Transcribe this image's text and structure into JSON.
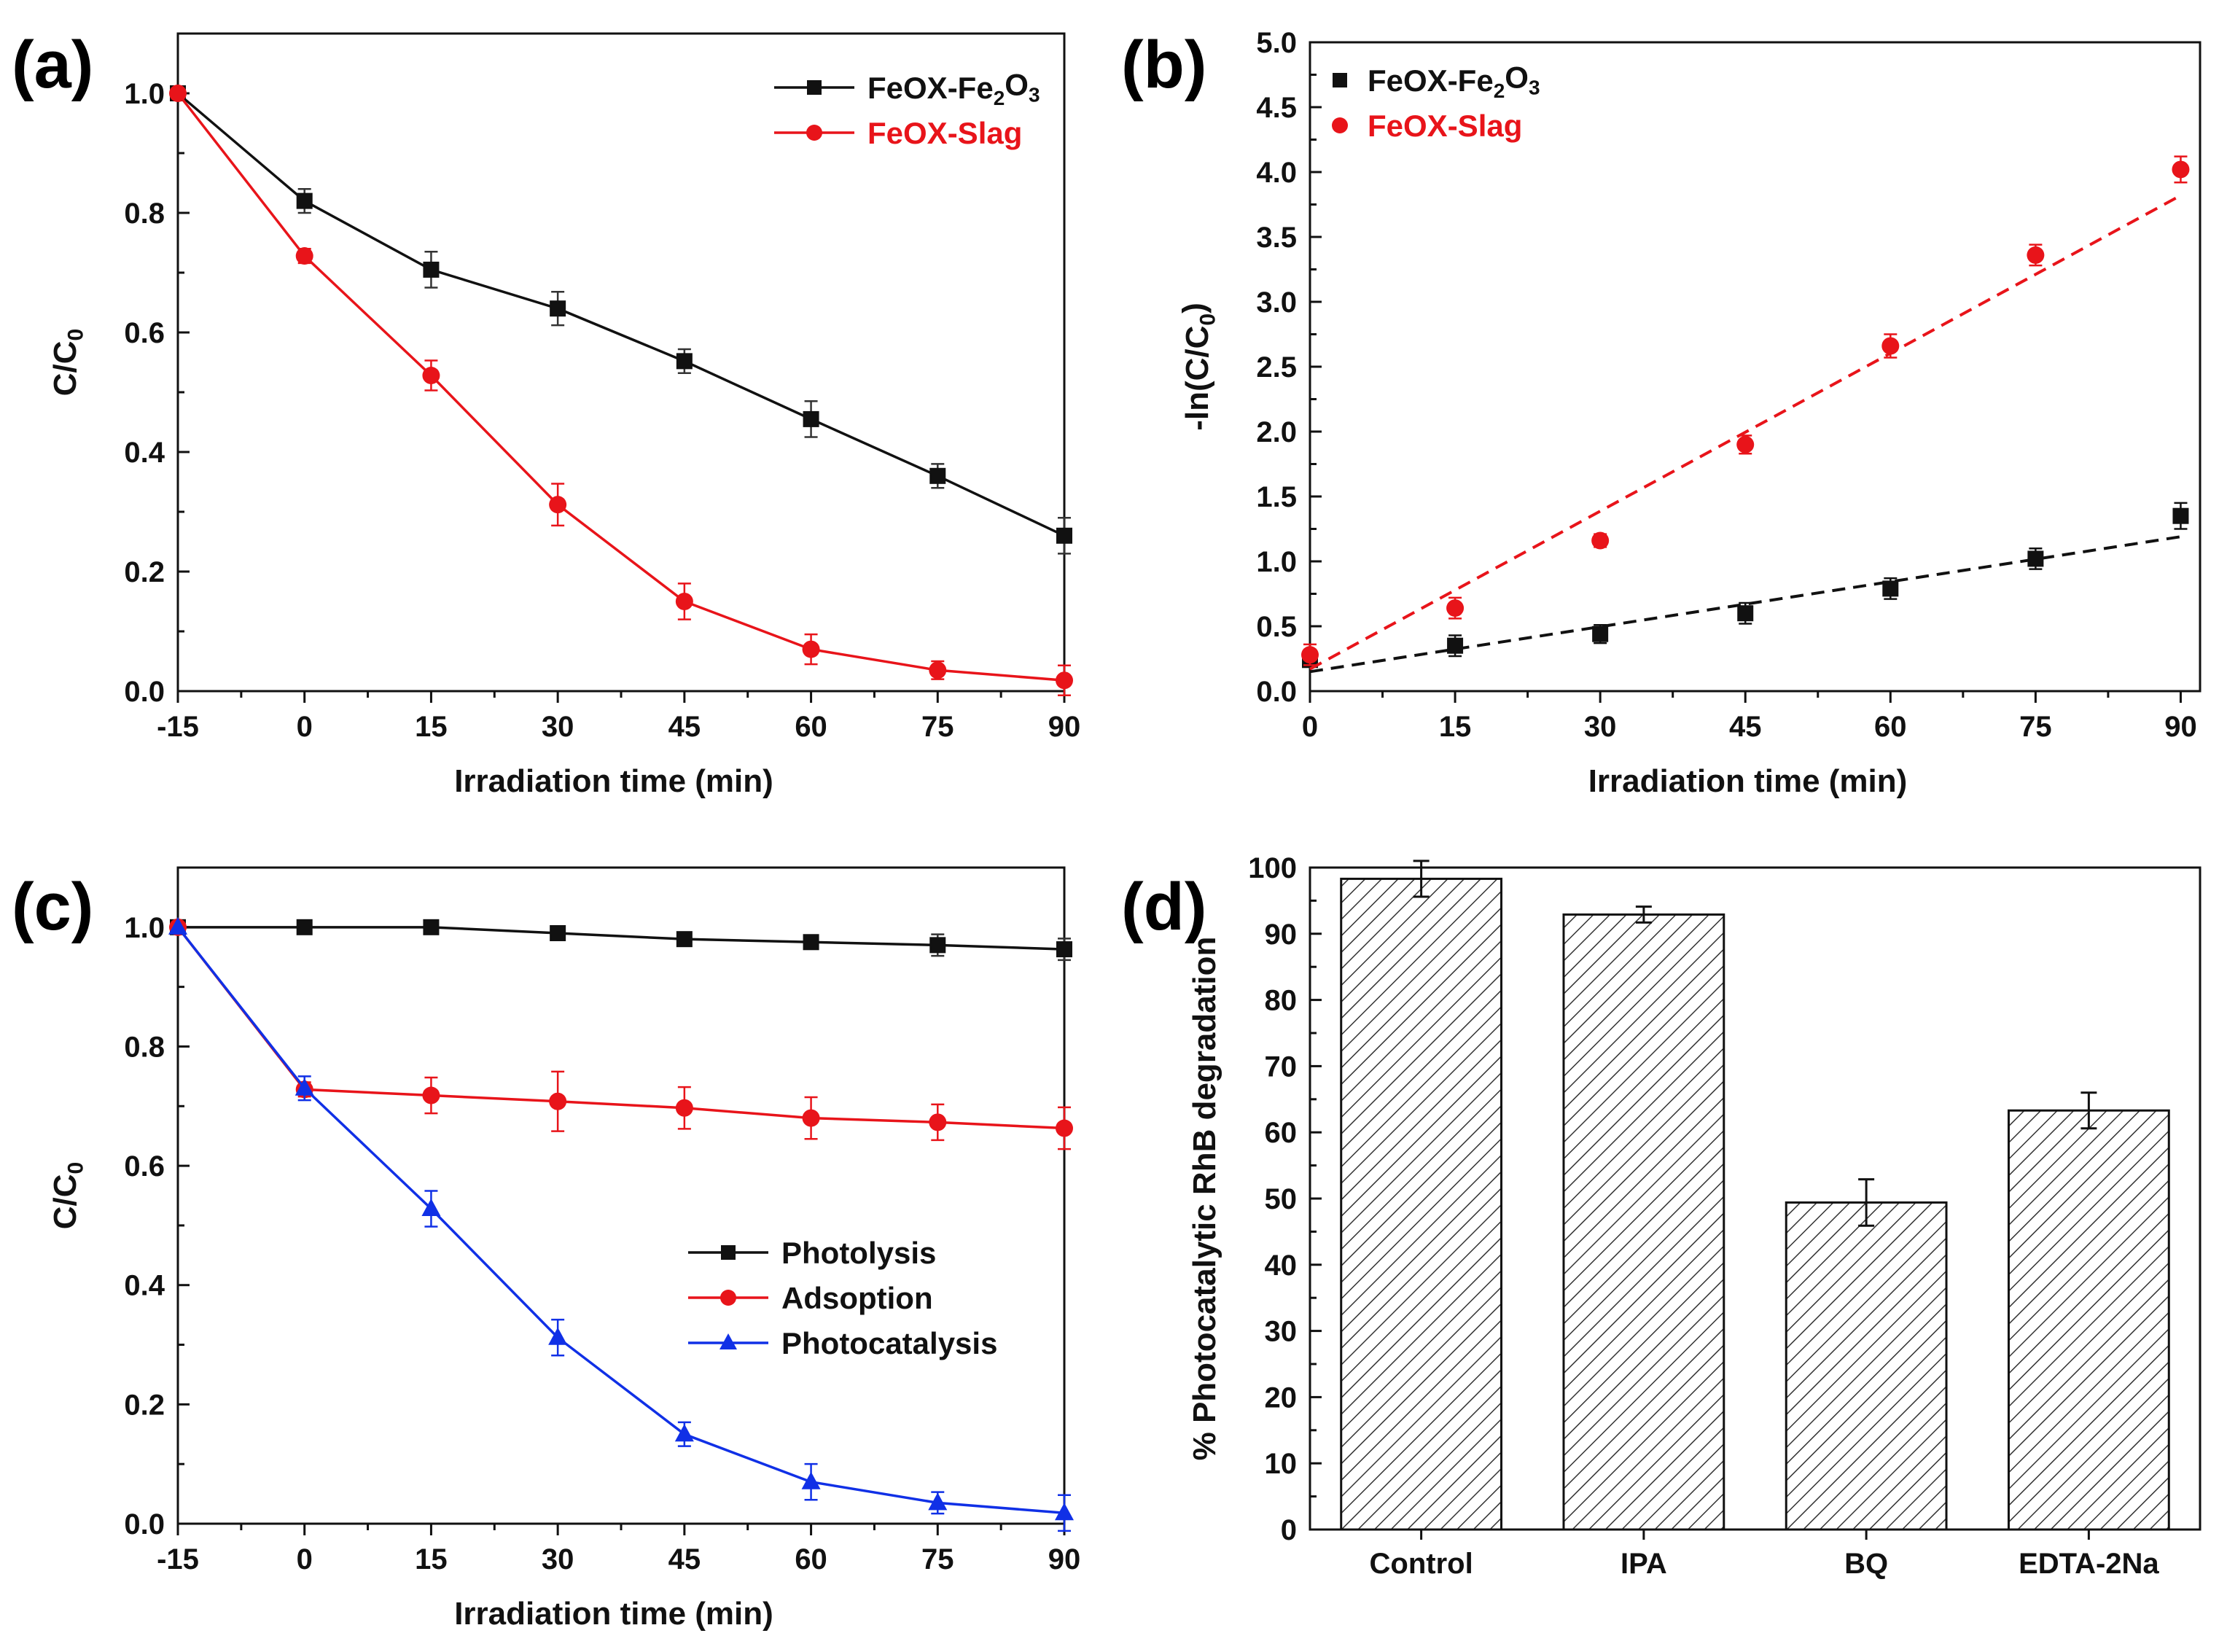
{
  "panels": [
    {
      "tag": "(a)",
      "type": "line",
      "xlabel": "Irradiation time (min)",
      "ylabel": "C/C0",
      "xlim": [
        -15,
        90
      ],
      "ylim": [
        0,
        1.1
      ],
      "xticks": [
        "-15",
        "0",
        "15",
        "30",
        "45",
        "60",
        "75",
        "90"
      ],
      "yticks": [
        "0.0",
        "0.2",
        "0.4",
        "0.6",
        "0.8",
        "1.0"
      ],
      "legend": [
        "FeOX-Fe2O3",
        "FeOX-Slag"
      ],
      "series": [
        {
          "name": "FeOX-Fe2O3",
          "color": "#111111",
          "marker": "square",
          "x": [
            -15,
            0,
            15,
            30,
            45,
            60,
            75,
            90
          ],
          "y": [
            1.0,
            0.82,
            0.705,
            0.64,
            0.552,
            0.455,
            0.36,
            0.26
          ],
          "err": [
            0.0,
            0.02,
            0.03,
            0.028,
            0.02,
            0.03,
            0.02,
            0.03
          ]
        },
        {
          "name": "FeOX-Slag",
          "color": "#e8141a",
          "marker": "circle",
          "x": [
            -15,
            0,
            15,
            30,
            45,
            60,
            75,
            90
          ],
          "y": [
            1.0,
            0.728,
            0.528,
            0.312,
            0.15,
            0.07,
            0.035,
            0.018
          ],
          "err": [
            0.0,
            0.012,
            0.025,
            0.035,
            0.03,
            0.025,
            0.015,
            0.025
          ]
        }
      ]
    },
    {
      "tag": "(b)",
      "type": "scatter",
      "xlabel": "Irradiation time (min)",
      "ylabel": "-ln(C/C0)",
      "xlim": [
        0,
        92
      ],
      "ylim": [
        0,
        5
      ],
      "xticks": [
        "0",
        "15",
        "30",
        "45",
        "60",
        "75",
        "90"
      ],
      "yticks": [
        "0.0",
        "0.5",
        "1.0",
        "1.5",
        "2.0",
        "2.5",
        "3.0",
        "3.5",
        "4.0",
        "4.5",
        "5.0"
      ],
      "legend": [
        "FeOX-Fe2O3",
        "FeOX-Slag"
      ],
      "series": [
        {
          "name": "FeOX-Fe2O3",
          "color": "#111111",
          "marker": "square",
          "x": [
            0,
            15,
            30,
            45,
            60,
            75,
            90
          ],
          "y": [
            0.24,
            0.35,
            0.44,
            0.6,
            0.79,
            1.02,
            1.35
          ],
          "err": [
            0.03,
            0.08,
            0.07,
            0.08,
            0.08,
            0.08,
            0.1
          ],
          "fit": [
            [
              0,
              0.15
            ],
            [
              90,
              1.19
            ]
          ]
        },
        {
          "name": "FeOX-Slag",
          "color": "#e8141a",
          "marker": "circle",
          "x": [
            0,
            15,
            30,
            45,
            60,
            75,
            90
          ],
          "y": [
            0.28,
            0.64,
            1.16,
            1.9,
            2.66,
            3.36,
            4.02
          ],
          "err": [
            0.08,
            0.08,
            0.05,
            0.07,
            0.09,
            0.08,
            0.1
          ],
          "fit": [
            [
              0,
              0.17
            ],
            [
              90,
              3.82
            ]
          ]
        }
      ]
    },
    {
      "tag": "(c)",
      "type": "line",
      "xlabel": "Irradiation time (min)",
      "ylabel": "C/C0",
      "xlim": [
        -15,
        90
      ],
      "ylim": [
        0,
        1.1
      ],
      "xticks": [
        "-15",
        "0",
        "15",
        "30",
        "45",
        "60",
        "75",
        "90"
      ],
      "yticks": [
        "0.0",
        "0.2",
        "0.4",
        "0.6",
        "0.8",
        "1.0"
      ],
      "legend": [
        "Photolysis",
        "Adsoption",
        "Photocatalysis"
      ],
      "series": [
        {
          "name": "Photolysis",
          "color": "#111111",
          "marker": "square",
          "x": [
            -15,
            0,
            15,
            30,
            45,
            60,
            75,
            90
          ],
          "y": [
            1.0,
            1.0,
            1.0,
            0.99,
            0.98,
            0.975,
            0.97,
            0.963
          ],
          "err": [
            0.0,
            0.005,
            0.008,
            0.008,
            0.01,
            0.01,
            0.018,
            0.018
          ]
        },
        {
          "name": "Adsoption",
          "color": "#e8141a",
          "marker": "circle",
          "x": [
            -15,
            0,
            15,
            30,
            45,
            60,
            75,
            90
          ],
          "y": [
            1.0,
            0.728,
            0.718,
            0.708,
            0.697,
            0.68,
            0.673,
            0.663
          ],
          "err": [
            0.0,
            0.012,
            0.03,
            0.05,
            0.035,
            0.035,
            0.03,
            0.035
          ]
        },
        {
          "name": "Photocatalysis",
          "color": "#1030e6",
          "marker": "triangle",
          "x": [
            -15,
            0,
            15,
            30,
            45,
            60,
            75,
            90
          ],
          "y": [
            1.0,
            0.73,
            0.528,
            0.312,
            0.15,
            0.07,
            0.035,
            0.018
          ],
          "err": [
            0.0,
            0.02,
            0.03,
            0.03,
            0.02,
            0.03,
            0.018,
            0.03
          ]
        }
      ]
    },
    {
      "tag": "(d)",
      "type": "bar",
      "xlabel": "",
      "ylabel": "% Photocatalytic RhB degradation",
      "ylim": [
        0,
        100
      ],
      "yticks": [
        "0",
        "10",
        "20",
        "30",
        "40",
        "50",
        "60",
        "70",
        "80",
        "90",
        "100"
      ],
      "categories": [
        "Control",
        "IPA",
        "BQ",
        "EDTA-2Na"
      ],
      "values": [
        98.3,
        92.9,
        49.4,
        63.3
      ],
      "err": [
        2.7,
        1.2,
        3.5,
        2.7
      ],
      "fill": "hatched"
    }
  ],
  "chart_data": [
    {
      "type": "line",
      "title": "(a)",
      "xlabel": "Irradiation time (min)",
      "ylabel": "C/C0",
      "x": [
        -15,
        0,
        15,
        30,
        45,
        60,
        75,
        90
      ],
      "series": [
        {
          "name": "FeOX-Fe2O3",
          "values": [
            1.0,
            0.82,
            0.705,
            0.64,
            0.552,
            0.455,
            0.36,
            0.26
          ]
        },
        {
          "name": "FeOX-Slag",
          "values": [
            1.0,
            0.728,
            0.528,
            0.312,
            0.15,
            0.07,
            0.035,
            0.018
          ]
        }
      ],
      "xlim": [
        -15,
        90
      ],
      "ylim": [
        0,
        1.1
      ],
      "legend": "top-right"
    },
    {
      "type": "scatter",
      "title": "(b)",
      "xlabel": "Irradiation time (min)",
      "ylabel": "-ln(C/C0)",
      "x": [
        0,
        15,
        30,
        45,
        60,
        75,
        90
      ],
      "series": [
        {
          "name": "FeOX-Fe2O3",
          "values": [
            0.24,
            0.35,
            0.44,
            0.6,
            0.79,
            1.02,
            1.35
          ]
        },
        {
          "name": "FeOX-Slag",
          "values": [
            0.28,
            0.64,
            1.16,
            1.9,
            2.66,
            3.36,
            4.02
          ]
        }
      ],
      "xlim": [
        0,
        92
      ],
      "ylim": [
        0,
        5
      ],
      "legend": "top-left"
    },
    {
      "type": "line",
      "title": "(c)",
      "xlabel": "Irradiation time (min)",
      "ylabel": "C/C0",
      "x": [
        -15,
        0,
        15,
        30,
        45,
        60,
        75,
        90
      ],
      "series": [
        {
          "name": "Photolysis",
          "values": [
            1.0,
            1.0,
            1.0,
            0.99,
            0.98,
            0.975,
            0.97,
            0.963
          ]
        },
        {
          "name": "Adsoption",
          "values": [
            1.0,
            0.728,
            0.718,
            0.708,
            0.697,
            0.68,
            0.673,
            0.663
          ]
        },
        {
          "name": "Photocatalysis",
          "values": [
            1.0,
            0.73,
            0.528,
            0.312,
            0.15,
            0.07,
            0.035,
            0.018
          ]
        }
      ],
      "xlim": [
        -15,
        90
      ],
      "ylim": [
        0,
        1.1
      ],
      "legend": "bottom-right"
    },
    {
      "type": "bar",
      "title": "(d)",
      "ylabel": "% Photocatalytic RhB degradation",
      "categories": [
        "Control",
        "IPA",
        "BQ",
        "EDTA-2Na"
      ],
      "values": [
        98.3,
        92.9,
        49.4,
        63.3
      ],
      "ylim": [
        0,
        100
      ]
    }
  ]
}
